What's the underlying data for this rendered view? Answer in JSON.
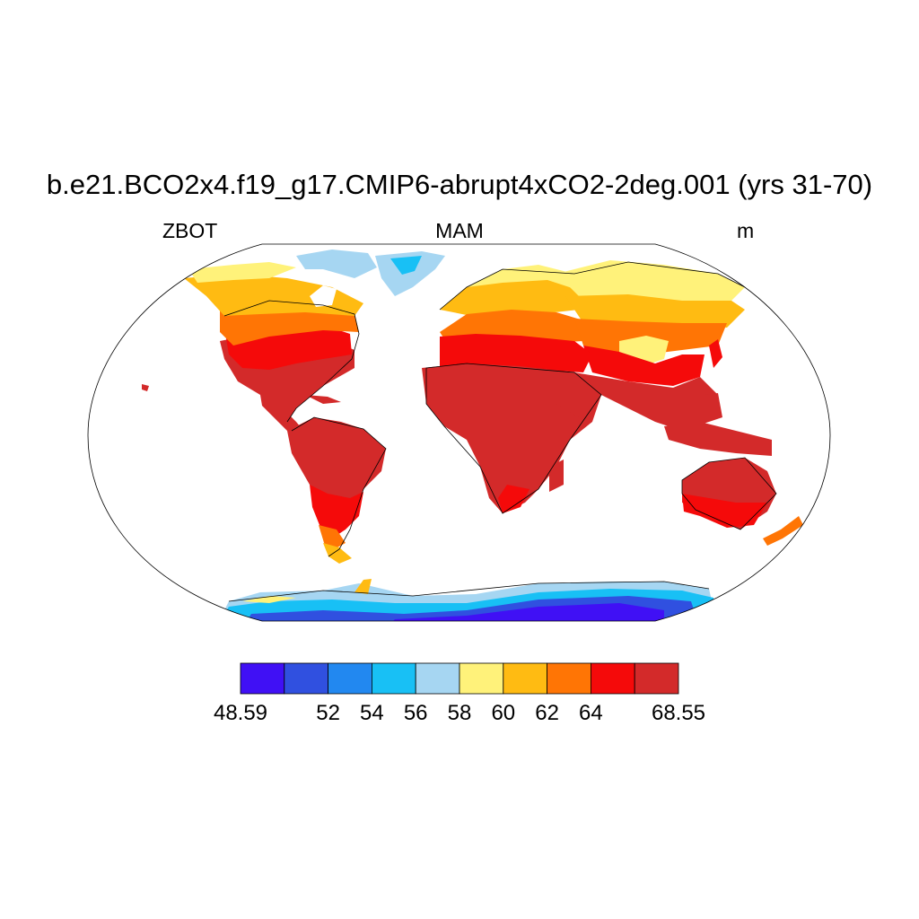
{
  "title": "b.e21.BCO2x4.f19_g17.CMIP6-abrupt4xCO2-2deg.001 (yrs 31-70)",
  "left_string": "ZBOT",
  "center_string": "MAM",
  "right_string": "m",
  "colorbar": {
    "colors": [
      "#4010f5",
      "#3050e0",
      "#2288f0",
      "#18c0f5",
      "#a6d6f2",
      "#fff27a",
      "#ffbb12",
      "#ff7505",
      "#f50a0a",
      "#d32a2a"
    ],
    "labels": [
      "48.59",
      "52",
      "54",
      "56",
      "58",
      "60",
      "62",
      "64",
      "68.55"
    ]
  }
}
